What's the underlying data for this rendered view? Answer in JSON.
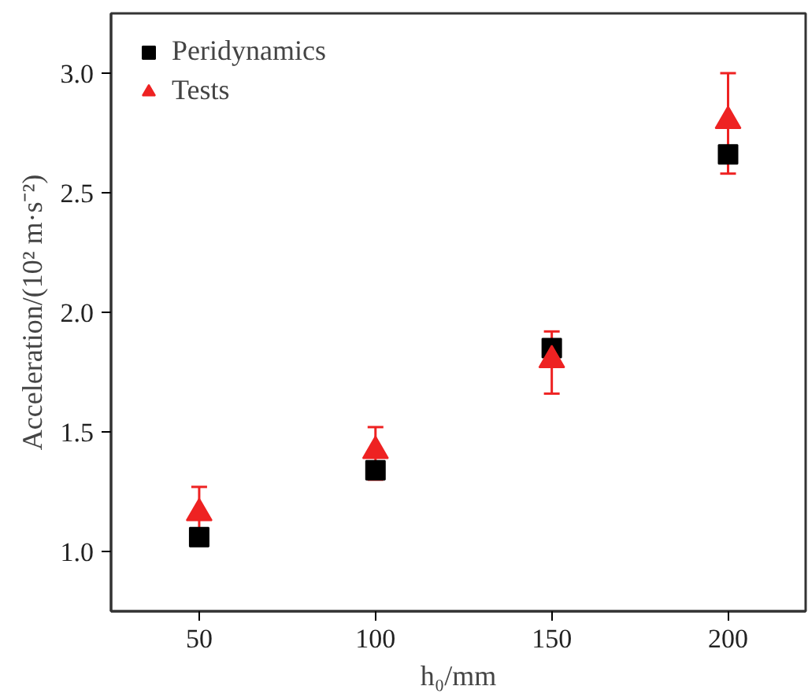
{
  "chart_data": {
    "type": "scatter",
    "xlabel": "h₀/mm",
    "ylabel": "Acceleration/(10² m·s⁻²)",
    "x": [
      50,
      100,
      150,
      200
    ],
    "series": [
      {
        "name": "Peridynamics",
        "color": "#000000",
        "marker": "square",
        "values": [
          1.06,
          1.34,
          1.85,
          2.66
        ]
      },
      {
        "name": "Tests",
        "color": "#ee2222",
        "marker": "triangle",
        "values": [
          1.16,
          1.42,
          1.8,
          2.8
        ],
        "errors": [
          [
            1.03,
            1.27
          ],
          [
            1.3,
            1.52
          ],
          [
            1.66,
            1.92
          ],
          [
            2.58,
            3.0
          ]
        ]
      }
    ],
    "xlim": [
      25,
      222
    ],
    "ylim": [
      0.75,
      3.25
    ],
    "xticks": [
      50,
      100,
      150,
      200
    ],
    "yticks": [
      {
        "value": 1.0,
        "label": "1.0"
      },
      {
        "value": 1.5,
        "label": "1.5"
      },
      {
        "value": 2.0,
        "label": "2.0"
      },
      {
        "value": 2.5,
        "label": "2.5"
      },
      {
        "value": 3.0,
        "label": "3.0"
      }
    ],
    "grid": false,
    "legend": "top left"
  }
}
